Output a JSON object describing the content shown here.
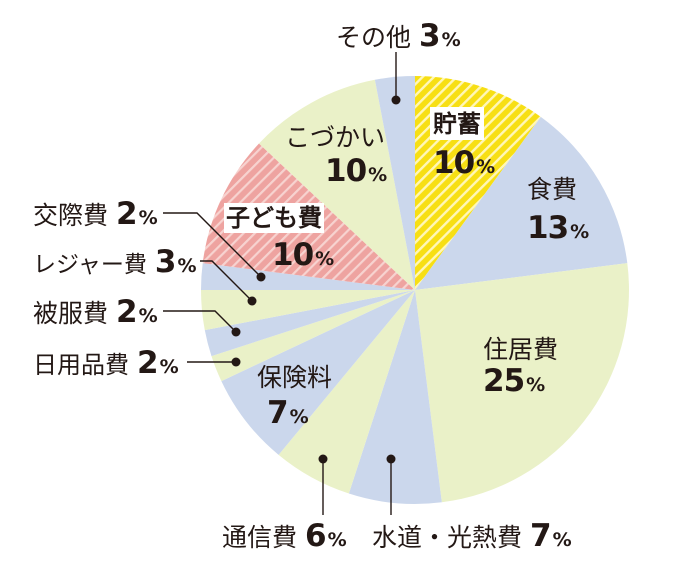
{
  "chart_data": {
    "type": "pie",
    "title": "",
    "start_angle_deg": 0,
    "direction": "clockwise",
    "unit": "%",
    "legend_position": "none",
    "categories": [
      "貯蓄",
      "食費",
      "住居費",
      "水道・光熱費",
      "通信費",
      "保険料",
      "日用品費",
      "被服費",
      "レジャー費",
      "交際費",
      "子ども費",
      "こづかい",
      "その他"
    ],
    "values": [
      10,
      13,
      25,
      7,
      6,
      7,
      2,
      2,
      3,
      2,
      10,
      10,
      3
    ],
    "slices": [
      {
        "name": "貯蓄",
        "value": 10,
        "color": "#f7df14",
        "striped": true,
        "stripe": "#fff7b8"
      },
      {
        "name": "食費",
        "value": 13,
        "color": "#cbd7ec"
      },
      {
        "name": "住居費",
        "value": 25,
        "color": "#eaf1c8"
      },
      {
        "name": "水道・光熱費",
        "value": 7,
        "color": "#cbd7ec"
      },
      {
        "name": "通信費",
        "value": 6,
        "color": "#eaf1c8"
      },
      {
        "name": "保険料",
        "value": 7,
        "color": "#cbd7ec"
      },
      {
        "name": "日用品費",
        "value": 2,
        "color": "#eaf1c8"
      },
      {
        "name": "被服費",
        "value": 2,
        "color": "#cbd7ec"
      },
      {
        "name": "レジャー費",
        "value": 3,
        "color": "#eaf1c8"
      },
      {
        "name": "交際費",
        "value": 2,
        "color": "#cbd7ec"
      },
      {
        "name": "子ども費",
        "value": 10,
        "color": "#eea3a0",
        "striped": true,
        "stripe": "#f7d3d0"
      },
      {
        "name": "こづかい",
        "value": 10,
        "color": "#eaf1c8"
      },
      {
        "name": "その他",
        "value": 3,
        "color": "#cbd7ec"
      }
    ]
  }
}
